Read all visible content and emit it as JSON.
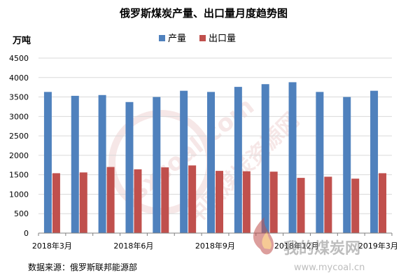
{
  "chart_data": {
    "type": "bar",
    "title": "俄罗斯煤炭产量、出口量月度趋势图",
    "ylabel": "万吨",
    "xlabel": "",
    "ylim": [
      0,
      4500
    ],
    "yticks": [
      0,
      500,
      1000,
      1500,
      2000,
      2500,
      3000,
      3500,
      4000,
      4500
    ],
    "x_tick_labels": [
      "2018年3月",
      "2018年6月",
      "2018年9月",
      "2018年12月",
      "2019年3月"
    ],
    "grid": true,
    "legend_position": "top",
    "series": [
      {
        "name": "产量",
        "color": "#4f81bd",
        "values": [
          3630,
          3530,
          3550,
          3370,
          3500,
          3660,
          3630,
          3760,
          3830,
          3880,
          3630,
          3500,
          3660
        ]
      },
      {
        "name": "出口量",
        "color": "#c0504d",
        "values": [
          1540,
          1560,
          1700,
          1640,
          1690,
          1740,
          1600,
          1590,
          1580,
          1420,
          1450,
          1400,
          1540
        ]
      }
    ],
    "source": "数据来源：俄罗斯联邦能源部"
  },
  "watermarks": {
    "site_cn": "中国煤炭资源网",
    "site_en": "sxcoal.com",
    "brand_cn": "我的煤炭网",
    "brand_url": "www.mycoal.cn"
  }
}
